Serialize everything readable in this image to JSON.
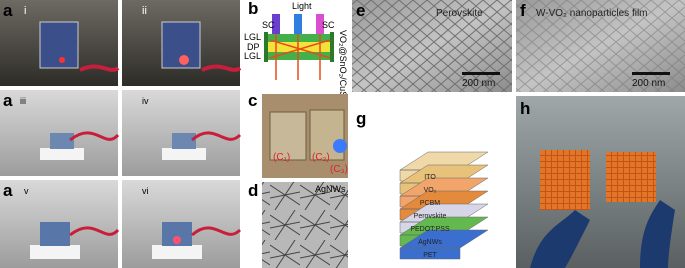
{
  "panels": {
    "a": {
      "label": "a",
      "sub": [
        "i",
        "ii",
        "iii",
        "iv",
        "v",
        "vi"
      ]
    },
    "b": {
      "label": "b",
      "light": "Light",
      "sc_left": "SC",
      "sc_right": "SC",
      "lgl_top": "LGL",
      "dp": "DP",
      "lgl_bottom": "LGL",
      "side": "VO₂@SnO₂/CuS"
    },
    "c": {
      "label": "c",
      "marks": [
        "(C₁)",
        "(C₂)",
        "(C₃)"
      ]
    },
    "d": {
      "label": "d",
      "caption": "AgNWs"
    },
    "e": {
      "label": "e",
      "caption": "Perovskite",
      "scale": "200 nm"
    },
    "f": {
      "label": "f",
      "caption": "W-VO₂ nanoparticles film",
      "scale": "200 nm"
    },
    "g": {
      "label": "g",
      "layers": [
        "ITO",
        "VO₂",
        "PCBM",
        "Perovskite",
        "PEDOT:PSS",
        "AgNWs",
        "PET"
      ]
    },
    "h": {
      "label": "h"
    }
  }
}
